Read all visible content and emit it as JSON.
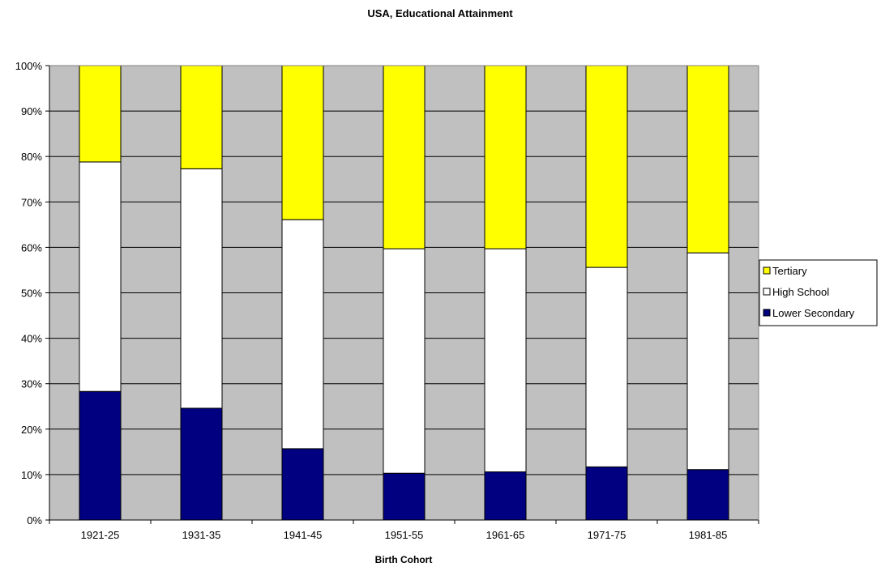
{
  "chart_data": {
    "type": "bar",
    "stacked": true,
    "percent_stacked": true,
    "title": "USA, Educational  Attainment",
    "xlabel": "Birth Cohort",
    "ylabel": "",
    "ylim": [
      0,
      100
    ],
    "y_ticks": [
      "0%",
      "10%",
      "20%",
      "30%",
      "40%",
      "50%",
      "60%",
      "70%",
      "80%",
      "90%",
      "100%"
    ],
    "categories": [
      "1921-25",
      "1931-35",
      "1941-45",
      "1951-55",
      "1961-65",
      "1971-75",
      "1981-85"
    ],
    "series": [
      {
        "name": "Lower Secondary",
        "color": "#000080",
        "values": [
          28.3,
          24.6,
          15.7,
          10.3,
          10.6,
          11.7,
          11.1
        ]
      },
      {
        "name": "High School",
        "color": "#ffffff",
        "values": [
          50.5,
          52.7,
          50.4,
          49.4,
          49.1,
          43.9,
          47.7
        ]
      },
      {
        "name": "Tertiary",
        "color": "#ffff00",
        "values": [
          21.2,
          22.7,
          33.9,
          40.3,
          40.3,
          44.4,
          41.2
        ]
      }
    ],
    "legend": {
      "placement": "right",
      "order": [
        "Tertiary",
        "High School",
        "Lower Secondary"
      ]
    },
    "grid": true,
    "plot_background": "#c0c0c0"
  }
}
